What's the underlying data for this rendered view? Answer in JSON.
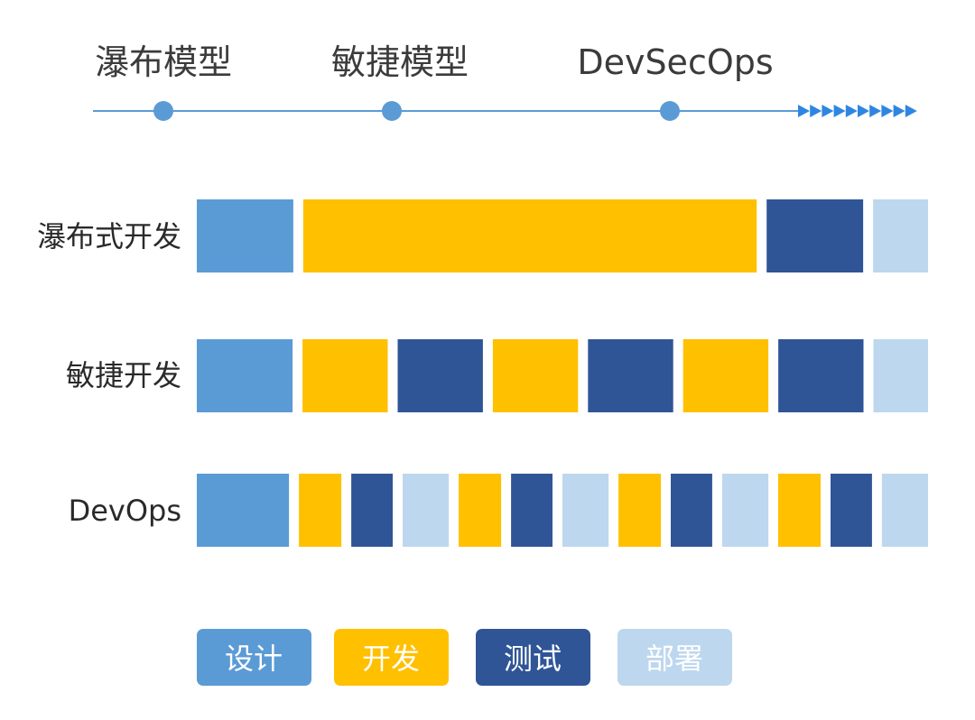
{
  "colors": {
    "design": "#5b9bd5",
    "develop": "#ffc000",
    "test": "#2f5597",
    "deploy": "#bdd7ee",
    "timeline_line": "#5b9bd5",
    "timeline_dot": "#5b9bd5",
    "timeline_arrow": "#2e86e0"
  },
  "timeline": {
    "milestones": [
      {
        "label": "瀑布模型"
      },
      {
        "label": "敏捷模型"
      },
      {
        "label": "DevSecOps"
      }
    ]
  },
  "rows": [
    {
      "label": "瀑布式开发",
      "segments": [
        {
          "phase": "design",
          "length": 1
        },
        {
          "phase": "develop",
          "length": 4.7
        },
        {
          "phase": "test",
          "length": 1
        },
        {
          "phase": "deploy",
          "length": 0.57
        }
      ]
    },
    {
      "label": "敏捷开发",
      "segments": [
        {
          "phase": "design",
          "length": 1
        },
        {
          "phase": "develop",
          "length": 0.89
        },
        {
          "phase": "test",
          "length": 0.89
        },
        {
          "phase": "develop",
          "length": 0.89
        },
        {
          "phase": "test",
          "length": 0.89
        },
        {
          "phase": "develop",
          "length": 0.89
        },
        {
          "phase": "test",
          "length": 0.89
        },
        {
          "phase": "deploy",
          "length": 0.57
        }
      ]
    },
    {
      "label": "DevOps",
      "segments": [
        {
          "phase": "design",
          "length": 1
        },
        {
          "phase": "develop",
          "length": 0.46
        },
        {
          "phase": "test",
          "length": 0.45
        },
        {
          "phase": "deploy",
          "length": 0.5
        },
        {
          "phase": "develop",
          "length": 0.46
        },
        {
          "phase": "test",
          "length": 0.45
        },
        {
          "phase": "deploy",
          "length": 0.5
        },
        {
          "phase": "develop",
          "length": 0.46
        },
        {
          "phase": "test",
          "length": 0.45
        },
        {
          "phase": "deploy",
          "length": 0.5
        },
        {
          "phase": "develop",
          "length": 0.46
        },
        {
          "phase": "test",
          "length": 0.45
        },
        {
          "phase": "deploy",
          "length": 0.5
        }
      ]
    }
  ],
  "legend": [
    {
      "phase": "design",
      "label": "设计"
    },
    {
      "phase": "develop",
      "label": "开发"
    },
    {
      "phase": "test",
      "label": "测试"
    },
    {
      "phase": "deploy",
      "label": "部署"
    }
  ]
}
